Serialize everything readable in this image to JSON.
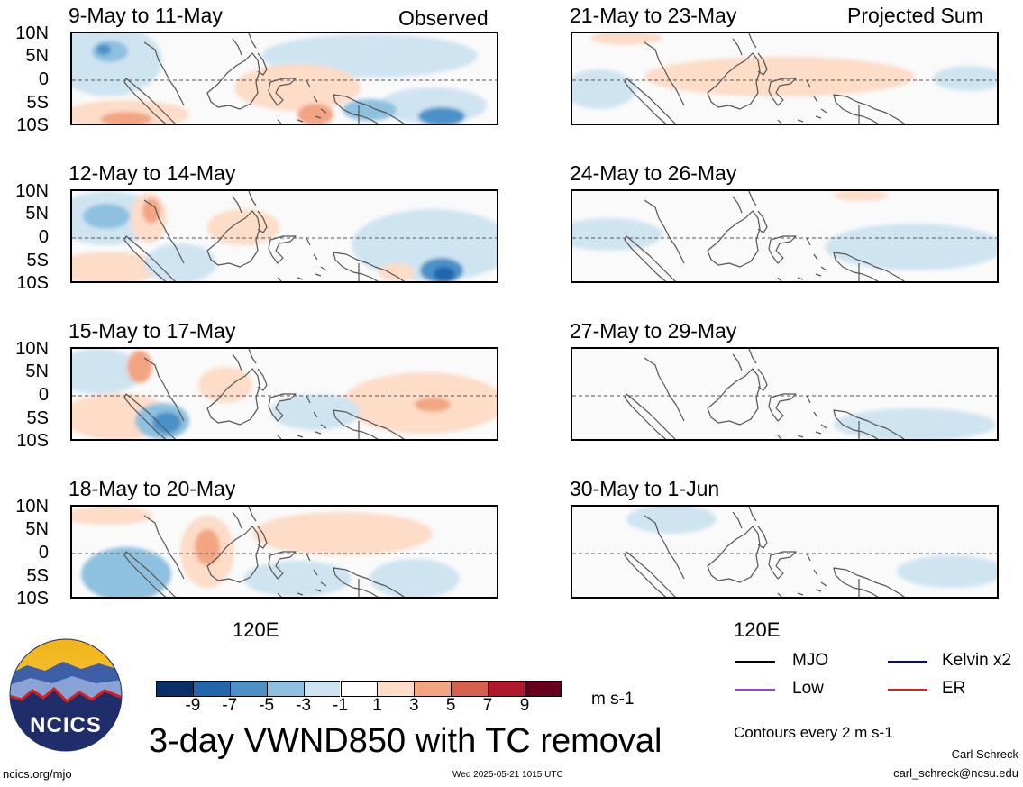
{
  "header": {
    "observed_label": "Observed",
    "projected_label": "Projected Sum"
  },
  "latitude_ticks": [
    "10N",
    "5N",
    "0",
    "5S",
    "10S"
  ],
  "longitude_label": "120E",
  "panels": [
    {
      "title": "9-May to 11-May",
      "column": "observed"
    },
    {
      "title": "12-May to 14-May",
      "column": "observed"
    },
    {
      "title": "15-May to 17-May",
      "column": "observed"
    },
    {
      "title": "18-May to 20-May",
      "column": "observed"
    },
    {
      "title": "21-May to 23-May",
      "column": "projected"
    },
    {
      "title": "24-May to 26-May",
      "column": "projected"
    },
    {
      "title": "27-May to 29-May",
      "column": "projected"
    },
    {
      "title": "30-May to 1-Jun",
      "column": "projected"
    }
  ],
  "colorbar": {
    "colors": [
      "#0b3068",
      "#2266ad",
      "#4b91c8",
      "#8ec1df",
      "#cfe4f1",
      "#ffffff",
      "#fddcc8",
      "#f3a583",
      "#d6604e",
      "#b2182c",
      "#67001f"
    ],
    "labels": [
      "-9",
      "-7",
      "-5",
      "-3",
      "-1",
      "1",
      "3",
      "5",
      "7",
      "9"
    ],
    "units": "m s-1"
  },
  "main_title": "3-day VWND850 with TC removal",
  "logo": {
    "text": "NCICS"
  },
  "legend": [
    {
      "name": "MJO",
      "color": "#000000"
    },
    {
      "name": "Kelvin x2",
      "color": "#0000cc"
    },
    {
      "name": "Low",
      "color": "#9a3fe0"
    },
    {
      "name": "ER",
      "color": "#e0201b"
    }
  ],
  "contour_note": "Contours every 2 m s-1",
  "footer": {
    "url": "ncics.org/mjo",
    "timestamp": "Wed 2025-05-21 1015 UTC",
    "author": "Carl Schreck",
    "email": "carl_schreck@ncsu.edu"
  }
}
